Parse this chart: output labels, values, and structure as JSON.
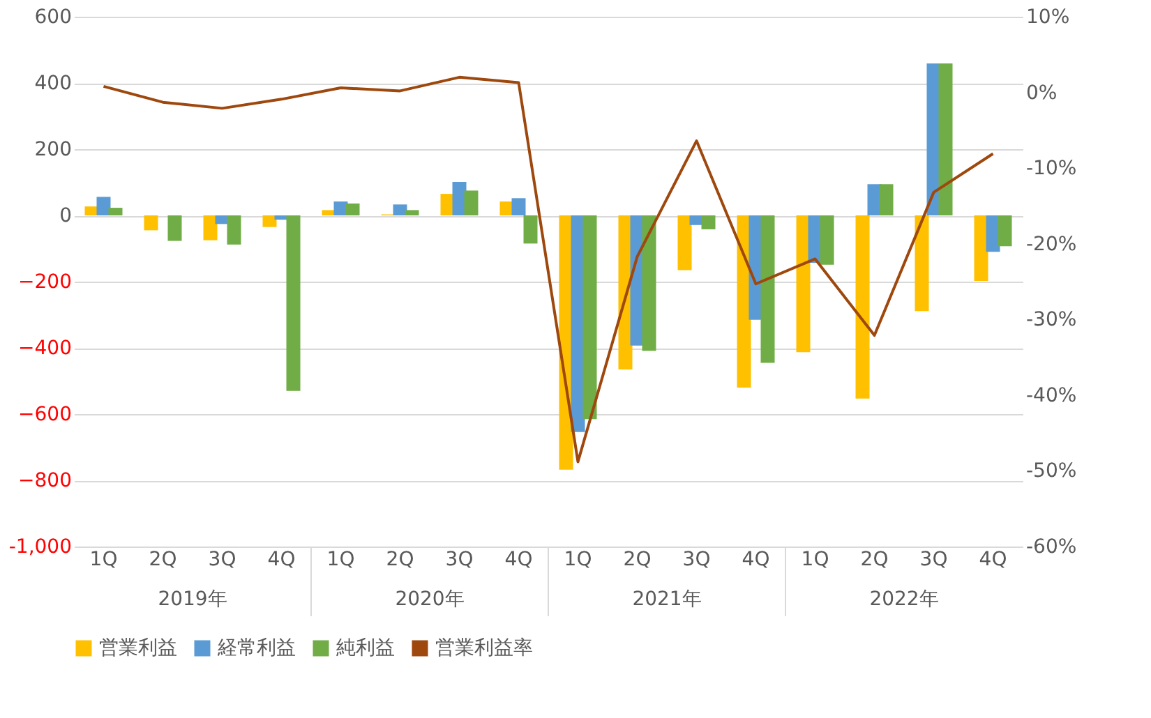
{
  "chart_data": {
    "type": "bar",
    "categories": [
      "1Q",
      "2Q",
      "3Q",
      "4Q",
      "1Q",
      "2Q",
      "3Q",
      "4Q",
      "1Q",
      "2Q",
      "3Q",
      "4Q",
      "1Q",
      "2Q",
      "3Q",
      "4Q"
    ],
    "annotations": [
      "2019年",
      "2020年",
      "2021年",
      "2022年"
    ],
    "series": [
      {
        "name": "営業利益",
        "color": "#ffc000",
        "values": [
          27,
          -45,
          -75,
          -35,
          16,
          3,
          65,
          42,
          -768,
          -465,
          -165,
          -520,
          -413,
          -553,
          -289,
          -198
        ]
      },
      {
        "name": "経常利益",
        "color": "#5b9bd5",
        "values": [
          56,
          0,
          -26,
          -13,
          42,
          33,
          101,
          52,
          -654,
          -393,
          -29,
          -315,
          -143,
          94,
          459,
          -110
        ]
      },
      {
        "name": "純利益",
        "color": "#70ad47",
        "values": [
          23,
          -77,
          -88,
          -530,
          36,
          16,
          75,
          -85,
          -615,
          -409,
          -42,
          -445,
          -149,
          94,
          459,
          -93
        ]
      },
      {
        "name": "営業利益率",
        "type": "line",
        "axis": "y2",
        "color": "#9e480e",
        "values": [
          0.8,
          -1.3,
          -2.1,
          -0.9,
          0.6,
          0.2,
          2.0,
          1.3,
          -48.8,
          -21.7,
          -6.4,
          -25.3,
          -22.0,
          -32.1,
          -13.2,
          -8.1
        ]
      }
    ],
    "ylim": [
      -1000,
      600
    ],
    "yticks": [
      {
        "value": -1000,
        "label": "-1,000"
      },
      -800,
      -600,
      -400,
      -200,
      0,
      200,
      400,
      600
    ],
    "y2lim": [
      -60,
      10
    ],
    "y2ticks": [
      {
        "value": -60,
        "label": "-60%"
      },
      {
        "value": -50,
        "label": "-50%"
      },
      {
        "value": -40,
        "label": "-40%"
      },
      {
        "value": -30,
        "label": "-30%"
      },
      {
        "value": -20,
        "label": "-20%"
      },
      {
        "value": -10,
        "label": "-10%"
      },
      {
        "value": 0,
        "label": "0%"
      },
      {
        "value": 10,
        "label": "10%"
      }
    ],
    "grid": "y",
    "legend": "bottom",
    "marker": "none",
    "line_style": "solid"
  }
}
